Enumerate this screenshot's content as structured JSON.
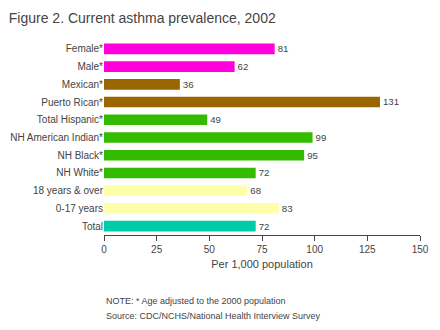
{
  "chart_data": {
    "type": "bar",
    "orientation": "horizontal",
    "title": "Figure 2. Current asthma prevalence, 2002",
    "categories": [
      "Female*",
      "Male*",
      "Mexican*",
      "Puerto Rican*",
      "Total Hispanic*",
      "NH American Indian*",
      "NH Black*",
      "NH White*",
      "18 years & over",
      "0-17 years",
      "Total"
    ],
    "values": [
      81,
      62,
      36,
      131,
      49,
      99,
      95,
      72,
      68,
      83,
      72
    ],
    "colors": [
      "#ff00dd",
      "#ff00dd",
      "#996600",
      "#996600",
      "#33bb00",
      "#33bb00",
      "#33bb00",
      "#33bb00",
      "#ffffaa",
      "#ffffaa",
      "#00ccaa"
    ],
    "xlabel": "Per 1,000 population",
    "xlim": [
      0,
      150
    ],
    "xticks": [
      0,
      25,
      50,
      75,
      100,
      125,
      150
    ],
    "data_labels": true,
    "grid": false,
    "annotations": [
      "NOTE: * Age adjusted to the 2000 population",
      "Source: CDC/NCHS/National Health Interview Survey"
    ]
  }
}
